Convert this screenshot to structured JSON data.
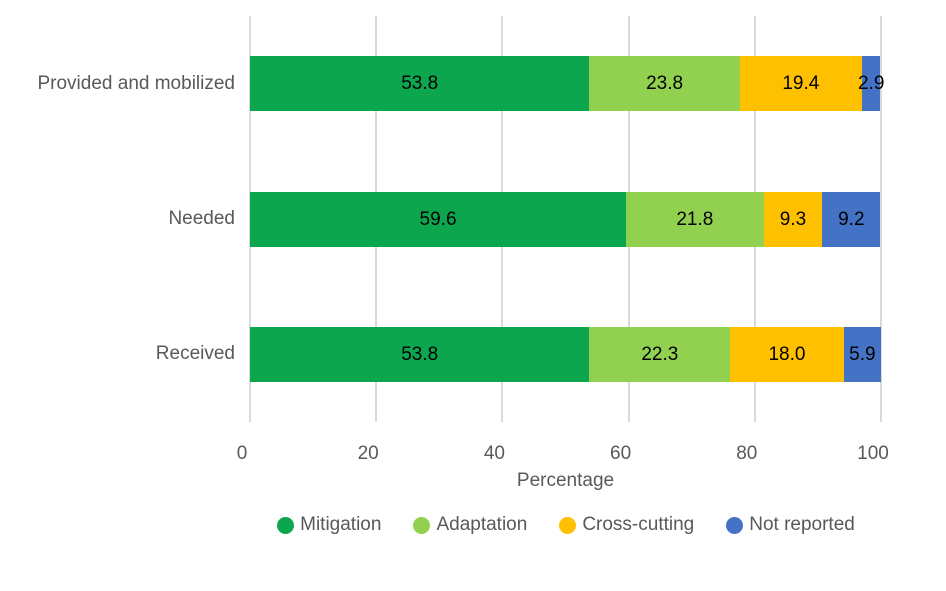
{
  "chart_data": {
    "type": "bar",
    "orientation": "horizontal",
    "stacked": true,
    "categories": [
      "Provided and mobilized",
      "Needed",
      "Received"
    ],
    "series": [
      {
        "name": "Mitigation",
        "color": "#0CA64F",
        "values": [
          53.8,
          59.6,
          53.8
        ]
      },
      {
        "name": "Adaptation",
        "color": "#92D050",
        "values": [
          23.8,
          21.8,
          22.3
        ]
      },
      {
        "name": "Cross-cutting",
        "color": "#FFC000",
        "values": [
          19.4,
          9.3,
          18.0
        ]
      },
      {
        "name": "Not reported",
        "color": "#4472C4",
        "values": [
          2.9,
          9.2,
          5.9
        ]
      }
    ],
    "value_labels": true,
    "value_label_decimals": 1,
    "xlabel": "Percentage",
    "x_ticks": [
      0,
      20,
      40,
      60,
      80,
      100
    ],
    "xlim": [
      0,
      100
    ],
    "grid": true,
    "legend_position": "bottom",
    "colors": {
      "gridline": "#D9D9D9",
      "axis_text": "#595959",
      "value_label_text": "#000000",
      "background": "#FFFFFF"
    }
  }
}
